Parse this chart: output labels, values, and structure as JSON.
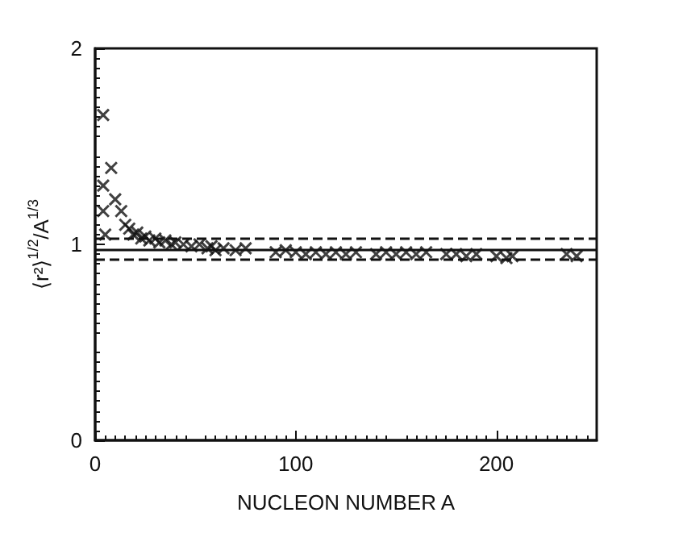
{
  "chart_data": {
    "type": "scatter",
    "xlabel": "NUCLEON NUMBER A",
    "ylabel": "⟨r²⟩$^{1/2}$/A$^{1/3}$",
    "x": [
      4,
      4,
      4,
      5,
      8,
      10,
      13,
      15,
      17,
      19,
      21,
      23,
      25,
      27,
      30,
      32,
      35,
      38,
      40,
      44,
      48,
      52,
      56,
      58,
      60,
      64,
      70,
      75,
      90,
      95,
      100,
      105,
      110,
      115,
      120,
      125,
      130,
      140,
      145,
      150,
      155,
      160,
      165,
      175,
      180,
      185,
      190,
      200,
      205,
      208,
      235,
      240
    ],
    "values": [
      1.66,
      1.3,
      1.17,
      1.05,
      1.39,
      1.23,
      1.17,
      1.1,
      1.08,
      1.05,
      1.06,
      1.03,
      1.04,
      1.02,
      1.03,
      1.01,
      1.02,
      1.0,
      1.01,
      1.0,
      0.99,
      1.0,
      0.98,
      0.99,
      0.97,
      0.98,
      0.97,
      0.98,
      0.96,
      0.97,
      0.96,
      0.95,
      0.96,
      0.95,
      0.96,
      0.95,
      0.96,
      0.95,
      0.96,
      0.95,
      0.96,
      0.95,
      0.96,
      0.95,
      0.95,
      0.94,
      0.95,
      0.94,
      0.93,
      0.94,
      0.95,
      0.94
    ],
    "color": "#111111",
    "marker": "cross",
    "xlim": [
      0,
      250
    ],
    "xticks": [
      0,
      100,
      200
    ],
    "ylim": [
      0,
      2
    ],
    "yticks": [
      0,
      1,
      2
    ],
    "grid": false,
    "ref_lines": [
      {
        "axis": "y",
        "value": 0.97,
        "line_style": "solid"
      },
      {
        "axis": "y",
        "value": 1.03,
        "line_style": "dashed"
      },
      {
        "axis": "y",
        "value": 0.92,
        "line_style": "dashed"
      }
    ]
  }
}
